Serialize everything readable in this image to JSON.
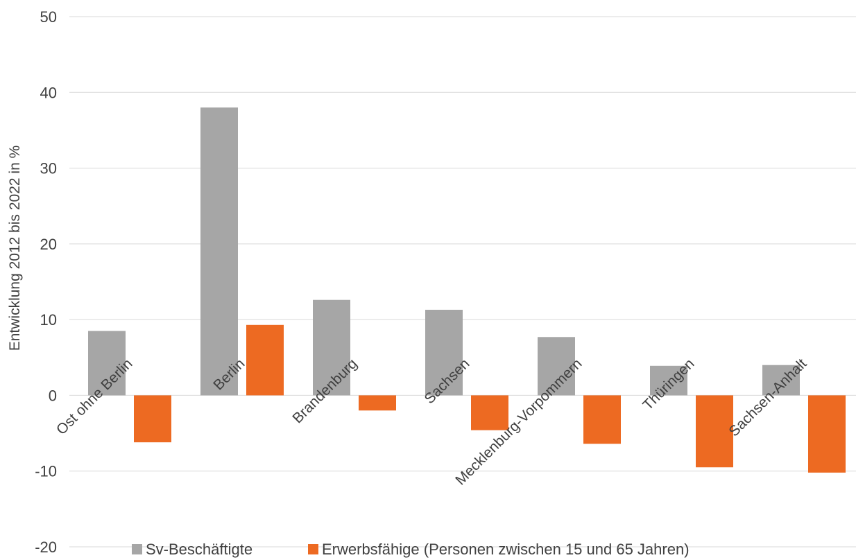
{
  "chart_data": {
    "type": "bar",
    "title": "",
    "xlabel": "",
    "ylabel": "Entwicklung 2012 bis 2022 in %",
    "ylim": [
      -20,
      50
    ],
    "yticks": [
      -20,
      -10,
      0,
      10,
      20,
      30,
      40,
      50
    ],
    "grid": true,
    "legend_position": "bottom",
    "categories": [
      "Ost ohne Berlin",
      "Berlin",
      "Brandenburg",
      "Sachsen",
      "Mecklenburg-Vorpommern",
      "Thüringen",
      "Sachsen-Anhalt"
    ],
    "series": [
      {
        "name": "Sv-Beschäftigte",
        "color": "#a6a6a6",
        "values": [
          8.5,
          38.0,
          12.6,
          11.3,
          7.7,
          3.9,
          4.0
        ]
      },
      {
        "name": "Erwerbsfähige (Personen zwischen 15 und 65 Jahren)",
        "color": "#ed6a22",
        "values": [
          -6.2,
          9.3,
          -2.0,
          -4.6,
          -6.4,
          -9.5,
          -10.2
        ]
      }
    ]
  }
}
